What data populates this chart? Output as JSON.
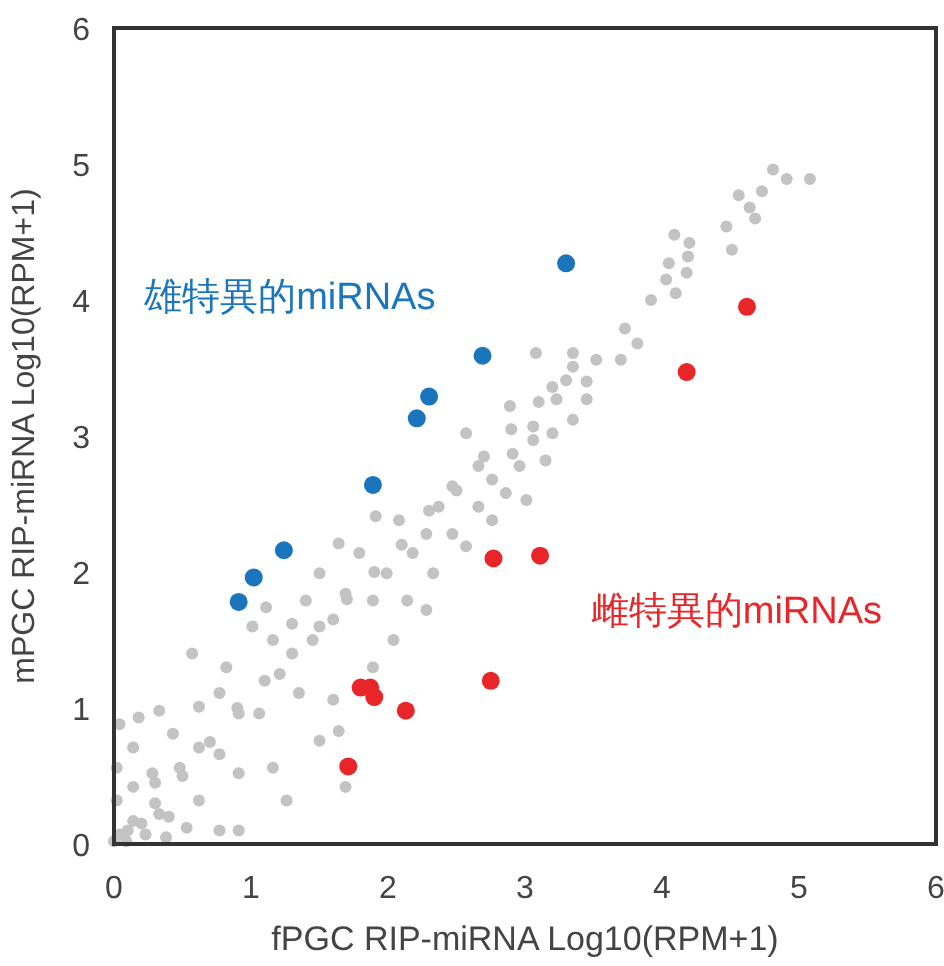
{
  "chart_data": {
    "type": "scatter",
    "xlabel": "fPGC RIP-miRNA Log10(RPM+1)",
    "ylabel": "mPGC RIP-miRNA Log10(RPM+1)",
    "xlim": [
      0,
      6
    ],
    "ylim": [
      0,
      6
    ],
    "xticks": [
      0,
      1,
      2,
      3,
      4,
      5,
      6
    ],
    "yticks": [
      0,
      1,
      2,
      3,
      4,
      5,
      6
    ],
    "marker": "circle",
    "series": [
      {
        "color": "#c3c3c3",
        "x": [
          5.08,
          4.81,
          4.91,
          4.73,
          4.56,
          4.64,
          4.68,
          4.47,
          4.51,
          4.09,
          4.2,
          4.19,
          4.18,
          4.05,
          4.03,
          4.1,
          3.92,
          3.73,
          3.82,
          3.7,
          3.52,
          3.45,
          3.35,
          3.08,
          3.3,
          3.23,
          3.35,
          3.2,
          3.15,
          2.89,
          3.06,
          2.96,
          2.86,
          3.01,
          2.76,
          2.66,
          2.57,
          2.47,
          2.37,
          2.28,
          2.18,
          2.28,
          2.57,
          2.08,
          1.91,
          1.99,
          1.89,
          1.79,
          1.64,
          1.69,
          1.5,
          1.6,
          1.4,
          1.3,
          1.45,
          1.16,
          1.11,
          1.01,
          1.21,
          1.35,
          1.6,
          1.64,
          1.5,
          1.69,
          1.26,
          1.16,
          0.91,
          0.82,
          0.77,
          0.57,
          0.62,
          0.43,
          0.33,
          0.18,
          0.14,
          0.04,
          0.02,
          0.02,
          0.14,
          0.28,
          0.48,
          0.62,
          0.77,
          0.91,
          0.62,
          0.53,
          0.77,
          0.91,
          0.38,
          0.14,
          0.04,
          0.09,
          0,
          0.23,
          0.33,
          1.06,
          1.89,
          2.04,
          2.14,
          2.33,
          2.47,
          2.66,
          2.76,
          2.91,
          3.06,
          3.2,
          3.35,
          3.45,
          0.5,
          0.7,
          0.9,
          1.1,
          1.3,
          1.5,
          1.7,
          1.9,
          2.1,
          2.3,
          2.5,
          2.7,
          2.9,
          3.1,
          0.3,
          0.2,
          0.1,
          0.4,
          0.3
        ],
        "values": [
          4.89,
          4.96,
          4.89,
          4.8,
          4.77,
          4.68,
          4.6,
          4.54,
          4.37,
          4.48,
          4.42,
          4.32,
          4.2,
          4.27,
          4.15,
          4.05,
          4.0,
          3.79,
          3.68,
          3.56,
          3.56,
          3.4,
          3.61,
          3.61,
          3.41,
          3.27,
          3.12,
          3.02,
          2.82,
          3.22,
          2.97,
          2.78,
          2.58,
          2.53,
          2.38,
          2.78,
          3.02,
          2.63,
          2.48,
          2.28,
          2.14,
          1.72,
          2.19,
          2.38,
          2.41,
          1.99,
          1.79,
          2.14,
          2.21,
          1.84,
          1.99,
          1.65,
          1.79,
          1.62,
          1.5,
          1.5,
          1.74,
          1.6,
          1.25,
          1.11,
          1.06,
          0.83,
          0.76,
          0.42,
          0.32,
          0.56,
          0.96,
          1.3,
          1.11,
          1.4,
          1.01,
          0.81,
          0.98,
          0.93,
          0.71,
          0.88,
          0.56,
          0.32,
          0.42,
          0.52,
          0.56,
          0.71,
          0.66,
          0.52,
          0.32,
          0.12,
          0.1,
          0.1,
          0.05,
          0.17,
          0.07,
          0.02,
          0.02,
          0.07,
          0.22,
          0.96,
          1.3,
          1.5,
          1.79,
          1.99,
          2.28,
          2.48,
          2.68,
          2.87,
          3.07,
          3.36,
          3.51,
          3.27,
          0.5,
          0.75,
          1.0,
          1.2,
          1.4,
          1.6,
          1.8,
          2.0,
          2.2,
          2.45,
          2.6,
          2.85,
          3.05,
          3.25,
          0.3,
          0.15,
          0.1,
          0.2,
          0.45
        ]
      },
      {
        "name": "雄特異的miRNAs",
        "color": "#1a75bc",
        "x": [
          0.91,
          1.02,
          1.24,
          1.89,
          2.21,
          2.3,
          2.69,
          3.3
        ],
        "values": [
          1.78,
          1.96,
          2.16,
          2.64,
          3.13,
          3.29,
          3.59,
          4.27
        ]
      },
      {
        "name": "雌特異的miRNAs",
        "color": "#e8262a",
        "x": [
          4.62,
          4.18,
          2.77,
          3.11,
          2.75,
          1.8,
          1.87,
          1.9,
          2.13,
          1.71
        ],
        "values": [
          3.95,
          3.47,
          2.1,
          2.12,
          1.2,
          1.15,
          1.15,
          1.08,
          0.98,
          0.57
        ]
      }
    ]
  }
}
